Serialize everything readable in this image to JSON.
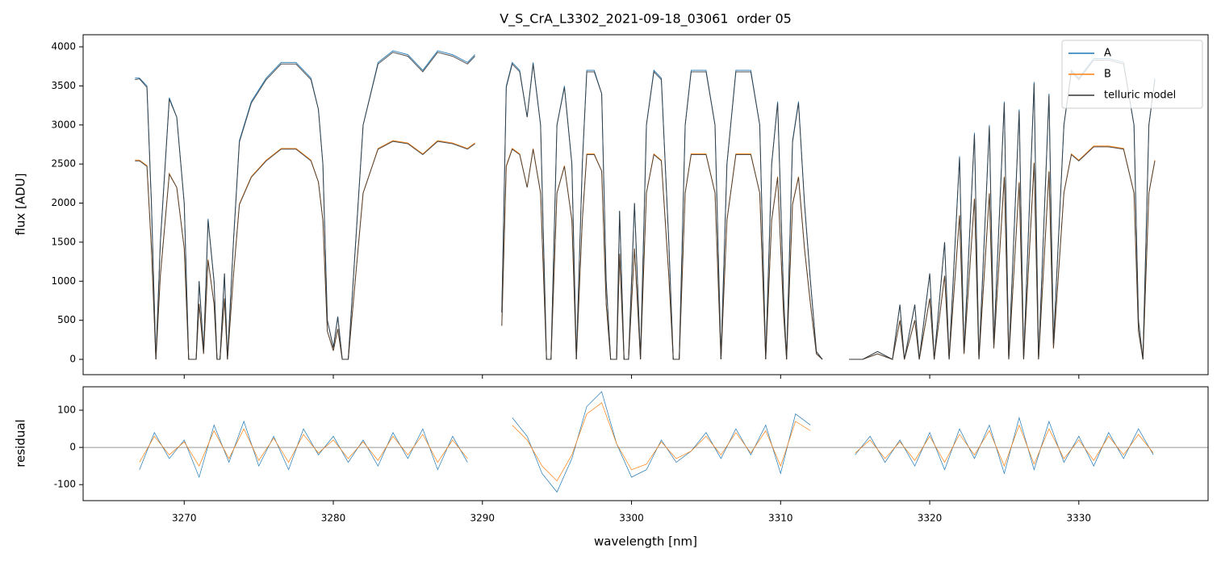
{
  "chart_data": [
    {
      "type": "line",
      "title": "V_S_CrA_L3302_2021-09-18_03061  order 05",
      "y_label": "flux [ADU]",
      "legend": "upper right",
      "ylim": [
        -196,
        4155
      ],
      "yticks": [
        0,
        500,
        1000,
        1500,
        2000,
        2500,
        3000,
        3500,
        4000
      ],
      "x": [
        3266.7,
        3267.0,
        3267.5,
        3267.8,
        3268.1,
        3268.4,
        3269.0,
        3269.5,
        3270.0,
        3270.3,
        3270.8,
        3271.0,
        3271.3,
        3271.6,
        3272.0,
        3272.2,
        3272.4,
        3272.7,
        3272.9,
        3273.3,
        3273.7,
        3274.5,
        3275.5,
        3276.5,
        3277.5,
        3278.5,
        3279.0,
        3279.3,
        3279.6,
        3280.0,
        3280.3,
        3280.6,
        3281.0,
        3281.5,
        3282.0,
        3283.0,
        3284.0,
        3285.0,
        3286.0,
        3287.0,
        3288.0,
        3289.0,
        3289.5,
        3290.4,
        3291.3,
        3291.6,
        3292.0,
        3292.5,
        3293.0,
        3293.4,
        3293.9,
        3294.3,
        3294.6,
        3295.0,
        3295.5,
        3296.0,
        3296.3,
        3296.7,
        3297.0,
        3297.5,
        3298.0,
        3298.3,
        3298.6,
        3299.0,
        3299.2,
        3299.5,
        3299.8,
        3300.2,
        3300.6,
        3301.0,
        3301.5,
        3302.0,
        3302.5,
        3302.8,
        3303.2,
        3303.6,
        3304.0,
        3305.0,
        3305.6,
        3306.0,
        3306.4,
        3307.0,
        3308.0,
        3308.6,
        3309.0,
        3309.4,
        3309.8,
        3310.2,
        3310.4,
        3310.8,
        3311.2,
        3311.6,
        3312.0,
        3312.4,
        3312.8,
        3313.7,
        3314.6,
        3315.5,
        3316.5,
        3317.5,
        3318.0,
        3318.3,
        3319.0,
        3319.3,
        3320.0,
        3320.3,
        3321.0,
        3321.3,
        3322.0,
        3322.3,
        3323.0,
        3323.3,
        3324.0,
        3324.3,
        3325.0,
        3325.3,
        3326.0,
        3326.3,
        3327.0,
        3327.3,
        3328.0,
        3328.3,
        3329.0,
        3329.5,
        3330.0,
        3331.0,
        3332.0,
        3333.0,
        3333.7,
        3334.0,
        3334.3,
        3334.7,
        3335.1
      ],
      "series": [
        {
          "name": "A",
          "color": "#1f77b4",
          "values": [
            3600,
            3600,
            3500,
            2000,
            0,
            1500,
            3350,
            3100,
            2000,
            0,
            0,
            1000,
            100,
            1800,
            1000,
            0,
            0,
            1100,
            0,
            1500,
            2800,
            3300,
            3600,
            3800,
            3800,
            3600,
            3200,
            2500,
            500,
            150,
            550,
            0,
            0,
            1500,
            3000,
            3800,
            3950,
            3900,
            3700,
            3950,
            3900,
            3800,
            3900,
            null,
            600,
            3500,
            3800,
            3700,
            3100,
            3800,
            3000,
            0,
            0,
            3000,
            3500,
            2500,
            0,
            2500,
            3700,
            3700,
            3400,
            1000,
            0,
            0,
            1900,
            0,
            0,
            2000,
            0,
            3000,
            3700,
            3600,
            1500,
            0,
            0,
            3000,
            3700,
            3700,
            3000,
            0,
            2500,
            3700,
            3700,
            3000,
            0,
            2500,
            3300,
            800,
            0,
            2800,
            3300,
            2000,
            1000,
            100,
            0,
            null,
            0,
            0,
            100,
            0,
            700,
            0,
            700,
            0,
            1100,
            0,
            1500,
            0,
            2600,
            100,
            2900,
            0,
            3000,
            200,
            3300,
            0,
            3200,
            0,
            3550,
            0,
            3400,
            200,
            3000,
            3700,
            3600,
            3850,
            3850,
            3800,
            3000,
            500,
            0,
            3000,
            3600
          ]
        },
        {
          "name": "B",
          "color": "#ff7f0e",
          "values": [
            2550,
            2550,
            2480,
            1420,
            0,
            1070,
            2380,
            2200,
            1420,
            0,
            0,
            710,
            70,
            1280,
            710,
            0,
            0,
            780,
            0,
            1070,
            1990,
            2340,
            2550,
            2700,
            2700,
            2550,
            2270,
            1780,
            360,
            110,
            390,
            0,
            0,
            1070,
            2130,
            2700,
            2800,
            2770,
            2630,
            2800,
            2770,
            2700,
            2770,
            null,
            430,
            2480,
            2700,
            2630,
            2200,
            2700,
            2130,
            0,
            0,
            2130,
            2480,
            1780,
            0,
            1780,
            2630,
            2630,
            2410,
            710,
            0,
            0,
            1350,
            0,
            0,
            1420,
            0,
            2130,
            2630,
            2550,
            1070,
            0,
            0,
            2130,
            2630,
            2630,
            2130,
            0,
            1780,
            2630,
            2630,
            2130,
            0,
            1780,
            2340,
            570,
            0,
            1990,
            2340,
            1420,
            710,
            70,
            0,
            null,
            0,
            0,
            70,
            0,
            500,
            0,
            500,
            0,
            780,
            0,
            1070,
            0,
            1850,
            70,
            2060,
            0,
            2130,
            140,
            2340,
            0,
            2270,
            0,
            2520,
            0,
            2410,
            140,
            2130,
            2630,
            2550,
            2730,
            2730,
            2700,
            2130,
            360,
            0,
            2130,
            2550
          ]
        },
        {
          "name": "telluric model",
          "color": "#333333",
          "values": [
            3580,
            3590,
            3480,
            2000,
            0,
            1500,
            3330,
            3100,
            2000,
            0,
            0,
            1000,
            100,
            1780,
            1000,
            0,
            0,
            1100,
            0,
            1500,
            2780,
            3280,
            3580,
            3780,
            3780,
            3580,
            3200,
            2500,
            500,
            150,
            540,
            0,
            0,
            1500,
            3000,
            3780,
            3930,
            3880,
            3680,
            3930,
            3880,
            3780,
            3880,
            null,
            600,
            3480,
            3780,
            3680,
            3100,
            3780,
            3000,
            0,
            0,
            3000,
            3480,
            2500,
            0,
            2500,
            3680,
            3680,
            3400,
            1000,
            0,
            0,
            1900,
            0,
            0,
            2000,
            0,
            3000,
            3680,
            3580,
            1500,
            0,
            0,
            3000,
            3680,
            3680,
            3000,
            0,
            2500,
            3680,
            3680,
            3000,
            0,
            2500,
            3280,
            800,
            0,
            2780,
            3280,
            2000,
            1000,
            100,
            0,
            null,
            0,
            0,
            100,
            0,
            700,
            0,
            700,
            0,
            1100,
            0,
            1500,
            0,
            2580,
            100,
            2880,
            0,
            2980,
            200,
            3280,
            0,
            3180,
            0,
            3530,
            0,
            3380,
            200,
            3000,
            3680,
            3580,
            3830,
            3830,
            3780,
            3000,
            500,
            0,
            3000,
            3580
          ],
          "values_b": [
            2540,
            2540,
            2470,
            1420,
            0,
            1070,
            2370,
            2200,
            1420,
            0,
            0,
            710,
            70,
            1270,
            710,
            0,
            0,
            780,
            0,
            1070,
            1980,
            2330,
            2540,
            2690,
            2690,
            2540,
            2270,
            1780,
            360,
            110,
            390,
            0,
            0,
            1070,
            2130,
            2690,
            2790,
            2760,
            2620,
            2790,
            2760,
            2690,
            2760,
            null,
            430,
            2470,
            2690,
            2620,
            2200,
            2690,
            2130,
            0,
            0,
            2130,
            2470,
            1780,
            0,
            1780,
            2620,
            2620,
            2410,
            710,
            0,
            0,
            1350,
            0,
            0,
            1420,
            0,
            2130,
            2620,
            2540,
            1070,
            0,
            0,
            2130,
            2620,
            2620,
            2130,
            0,
            1780,
            2620,
            2620,
            2130,
            0,
            1780,
            2330,
            570,
            0,
            1980,
            2330,
            1420,
            710,
            70,
            0,
            null,
            0,
            0,
            70,
            0,
            500,
            0,
            500,
            0,
            780,
            0,
            1070,
            0,
            1840,
            70,
            2050,
            0,
            2120,
            140,
            2330,
            0,
            2260,
            0,
            2510,
            0,
            2400,
            140,
            2130,
            2620,
            2540,
            2720,
            2720,
            2690,
            2130,
            360,
            0,
            2130,
            2540
          ]
        }
      ]
    },
    {
      "type": "line",
      "x_label": "wavelength [nm]",
      "y_label": "residual",
      "hline": 0,
      "xlim": [
        3263.22,
        3338.67
      ],
      "xticks": [
        3270,
        3280,
        3290,
        3300,
        3310,
        3320,
        3330
      ],
      "ylim": [
        -143,
        163
      ],
      "yticks": [
        -100,
        0,
        100
      ],
      "x": [
        3267,
        3268,
        3269,
        3270,
        3271,
        3272,
        3273,
        3274,
        3275,
        3276,
        3277,
        3278,
        3279,
        3280,
        3281,
        3282,
        3283,
        3284,
        3285,
        3286,
        3287,
        3288,
        3289,
        3290,
        3292,
        3293,
        3294,
        3295,
        3296,
        3297,
        3298,
        3299,
        3300,
        3301,
        3302,
        3303,
        3304,
        3305,
        3306,
        3307,
        3308,
        3309,
        3310,
        3311,
        3312,
        3313.5,
        3315,
        3316,
        3317,
        3318,
        3319,
        3320,
        3321,
        3322,
        3323,
        3324,
        3325,
        3326,
        3327,
        3328,
        3329,
        3330,
        3331,
        3332,
        3333,
        3334,
        3335
      ],
      "series": [
        {
          "name": "A",
          "color": "#1f77b4",
          "values": [
            -60,
            40,
            -30,
            20,
            -80,
            60,
            -40,
            70,
            -50,
            30,
            -60,
            50,
            -20,
            30,
            -40,
            20,
            -50,
            40,
            -30,
            50,
            -60,
            30,
            -40,
            null,
            80,
            30,
            -70,
            -120,
            -30,
            110,
            150,
            10,
            -80,
            -60,
            20,
            -40,
            -10,
            40,
            -30,
            50,
            -20,
            60,
            -70,
            90,
            60,
            null,
            -20,
            30,
            -40,
            20,
            -50,
            40,
            -60,
            50,
            -30,
            60,
            -70,
            80,
            -60,
            70,
            -40,
            30,
            -50,
            40,
            -30,
            50,
            -20
          ]
        },
        {
          "name": "B",
          "color": "#ff7f0e",
          "values": [
            -40,
            30,
            -20,
            15,
            -50,
            45,
            -30,
            50,
            -35,
            25,
            -40,
            35,
            -15,
            20,
            -30,
            15,
            -35,
            30,
            -20,
            35,
            -40,
            20,
            -30,
            null,
            60,
            20,
            -50,
            -90,
            -20,
            90,
            120,
            10,
            -60,
            -45,
            15,
            -30,
            -10,
            30,
            -20,
            40,
            -15,
            45,
            -50,
            70,
            45,
            null,
            -15,
            20,
            -30,
            15,
            -35,
            30,
            -40,
            35,
            -20,
            45,
            -50,
            60,
            -45,
            50,
            -30,
            20,
            -35,
            30,
            -20,
            35,
            -15
          ]
        }
      ]
    }
  ]
}
